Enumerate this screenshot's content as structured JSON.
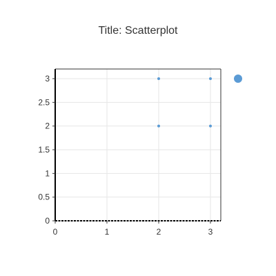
{
  "chart_data": {
    "type": "scatter",
    "title": "Title: Scatterplot",
    "xlabel": "",
    "ylabel": "",
    "xlim": [
      0,
      3.2
    ],
    "ylim": [
      0,
      3.1
    ],
    "x_ticks": [
      "0",
      "1",
      "2",
      "3"
    ],
    "y_ticks": [
      "0",
      "0.5",
      "1",
      "1.5",
      "2",
      "2.5",
      "3"
    ],
    "grid": true,
    "legend": "right, single marker without label",
    "series": [
      {
        "color": "#5b9bd5",
        "points": [
          {
            "x": 2,
            "y": 3
          },
          {
            "x": 3,
            "y": 3
          },
          {
            "x": 2,
            "y": 2
          },
          {
            "x": 3,
            "y": 2
          }
        ]
      }
    ]
  }
}
